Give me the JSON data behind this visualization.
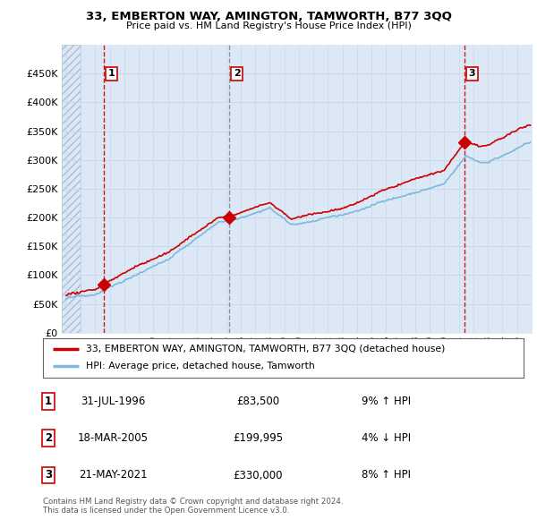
{
  "title": "33, EMBERTON WAY, AMINGTON, TAMWORTH, B77 3QQ",
  "subtitle": "Price paid vs. HM Land Registry's House Price Index (HPI)",
  "sales": [
    {
      "date_num": 1996.58,
      "price": 83500,
      "label": "1"
    },
    {
      "date_num": 2005.21,
      "price": 199995,
      "label": "2"
    },
    {
      "date_num": 2021.38,
      "price": 330000,
      "label": "3"
    }
  ],
  "hpi_color": "#7cb8e0",
  "price_color": "#cc0000",
  "vline_color_red": "#cc0000",
  "vline_color_gray": "#888888",
  "legend_entries": [
    "33, EMBERTON WAY, AMINGTON, TAMWORTH, B77 3QQ (detached house)",
    "HPI: Average price, detached house, Tamworth"
  ],
  "table_rows": [
    {
      "num": "1",
      "date": "31-JUL-1996",
      "price": "£83,500",
      "hpi": "9% ↑ HPI"
    },
    {
      "num": "2",
      "date": "18-MAR-2005",
      "price": "£199,995",
      "hpi": "4% ↓ HPI"
    },
    {
      "num": "3",
      "date": "21-MAY-2021",
      "price": "£330,000",
      "hpi": "8% ↑ HPI"
    }
  ],
  "footer": "Contains HM Land Registry data © Crown copyright and database right 2024.\nThis data is licensed under the Open Government Licence v3.0.",
  "ylim": [
    0,
    500000
  ],
  "xlim": [
    1993.7,
    2026.0
  ],
  "hatch_end": 1995.0,
  "background_light_blue": "#dce8f5",
  "background_hatch_color": "#dce8f5",
  "grid_color": "#c8d8e8"
}
